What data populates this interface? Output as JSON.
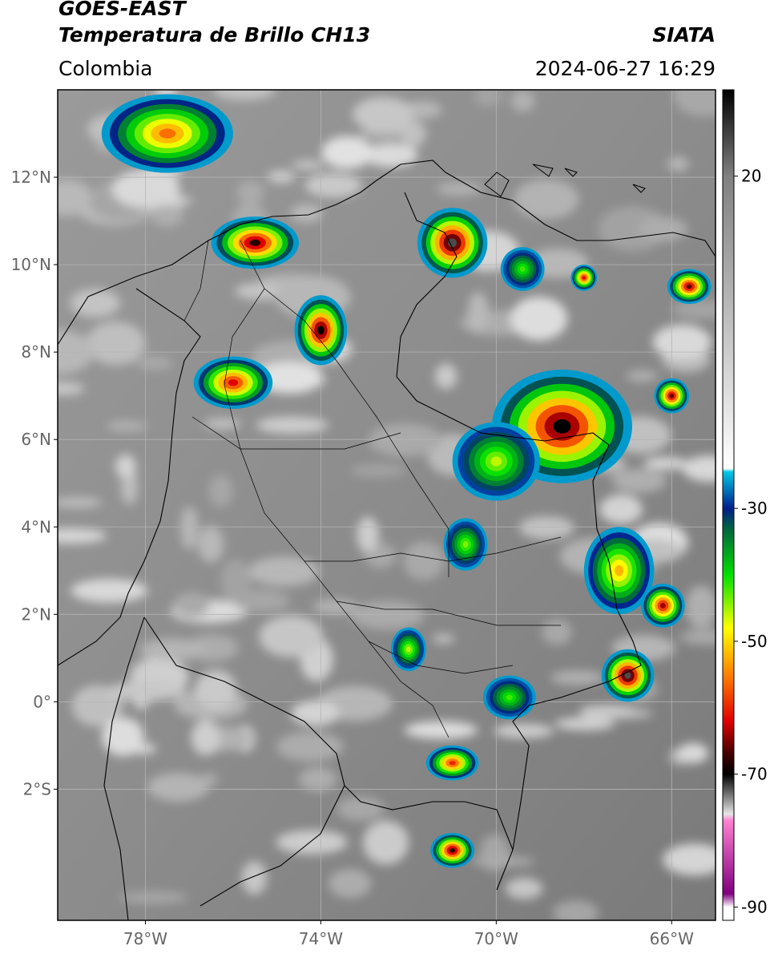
{
  "header": {
    "title_line1": "GOES-EAST",
    "title_line2": "Temperatura de Brillo CH13",
    "region": "Colombia",
    "agency": "SIATA",
    "datetime": "2024-06-27 16:29"
  },
  "map": {
    "lon_range": [
      -80,
      -65
    ],
    "lat_range": [
      -5,
      14
    ],
    "lat_ticks": [
      {
        "value": 12,
        "label": "12°N"
      },
      {
        "value": 10,
        "label": "10°N"
      },
      {
        "value": 8,
        "label": "8°N"
      },
      {
        "value": 6,
        "label": "6°N"
      },
      {
        "value": 4,
        "label": "4°N"
      },
      {
        "value": 2,
        "label": "2°N"
      },
      {
        "value": 0,
        "label": "0°"
      },
      {
        "value": -2,
        "label": "2°S"
      }
    ],
    "lon_ticks": [
      {
        "value": -78,
        "label": "78°W"
      },
      {
        "value": -74,
        "label": "74°W"
      },
      {
        "value": -70,
        "label": "70°W"
      },
      {
        "value": -66,
        "label": "66°W"
      }
    ],
    "gridlines": true
  },
  "colorbar": {
    "range": [
      -92,
      33
    ],
    "ticks": [
      {
        "value": 20,
        "label": "20"
      },
      {
        "value": -30,
        "label": "-30"
      },
      {
        "value": -50,
        "label": "-50"
      },
      {
        "value": -70,
        "label": "-70"
      },
      {
        "value": -90,
        "label": "-90"
      }
    ],
    "stops": [
      {
        "value": 33,
        "color": "#000000"
      },
      {
        "value": 20,
        "color": "#808080"
      },
      {
        "value": -24,
        "color": "#ffffff"
      },
      {
        "value": -24.5,
        "color": "#00c8e6"
      },
      {
        "value": -30,
        "color": "#001e8c"
      },
      {
        "value": -33,
        "color": "#006440"
      },
      {
        "value": -40,
        "color": "#00e000"
      },
      {
        "value": -48,
        "color": "#ffff00"
      },
      {
        "value": -55,
        "color": "#ff8000"
      },
      {
        "value": -62,
        "color": "#e00000"
      },
      {
        "value": -67,
        "color": "#400000"
      },
      {
        "value": -70,
        "color": "#000000"
      },
      {
        "value": -73,
        "color": "#707070"
      },
      {
        "value": -76,
        "color": "#e6e6e6"
      },
      {
        "value": -77,
        "color": "#ff80d0"
      },
      {
        "value": -88,
        "color": "#800080"
      },
      {
        "value": -90,
        "color": "#ffffff"
      },
      {
        "value": -92,
        "color": "#ffffff"
      }
    ]
  },
  "storm_cells": [
    {
      "lon": -75.5,
      "lat": 10.5,
      "rx": 1.0,
      "ry": 0.6,
      "peak": -68
    },
    {
      "lon": -74.0,
      "lat": 8.5,
      "rx": 0.6,
      "ry": 0.8,
      "peak": -70
    },
    {
      "lon": -76.0,
      "lat": 7.3,
      "rx": 0.9,
      "ry": 0.6,
      "peak": -62
    },
    {
      "lon": -71.0,
      "lat": 10.5,
      "rx": 0.8,
      "ry": 0.8,
      "peak": -72
    },
    {
      "lon": -68.5,
      "lat": 6.3,
      "rx": 1.6,
      "ry": 1.3,
      "peak": -70
    },
    {
      "lon": -67.2,
      "lat": 3.0,
      "rx": 0.8,
      "ry": 1.0,
      "peak": -52
    },
    {
      "lon": -66.2,
      "lat": 2.2,
      "rx": 0.5,
      "ry": 0.5,
      "peak": -64
    },
    {
      "lon": -67.0,
      "lat": 0.6,
      "rx": 0.6,
      "ry": 0.6,
      "peak": -72
    },
    {
      "lon": -71.0,
      "lat": -3.4,
      "rx": 0.5,
      "ry": 0.4,
      "peak": -68
    },
    {
      "lon": -71.0,
      "lat": -1.4,
      "rx": 0.6,
      "ry": 0.4,
      "peak": -60
    },
    {
      "lon": -70.0,
      "lat": 5.5,
      "rx": 1.0,
      "ry": 0.9,
      "peak": -46
    },
    {
      "lon": -77.5,
      "lat": 13.0,
      "rx": 1.5,
      "ry": 0.9,
      "peak": -56
    },
    {
      "lon": -66.0,
      "lat": 7.0,
      "rx": 0.4,
      "ry": 0.4,
      "peak": -66
    },
    {
      "lon": -65.6,
      "lat": 9.5,
      "rx": 0.5,
      "ry": 0.4,
      "peak": -66
    },
    {
      "lon": -68.0,
      "lat": 9.7,
      "rx": 0.3,
      "ry": 0.3,
      "peak": -62
    },
    {
      "lon": -69.4,
      "lat": 9.9,
      "rx": 0.5,
      "ry": 0.5,
      "peak": -42
    },
    {
      "lon": -70.7,
      "lat": 3.6,
      "rx": 0.5,
      "ry": 0.6,
      "peak": -44
    },
    {
      "lon": -72.0,
      "lat": 1.2,
      "rx": 0.4,
      "ry": 0.5,
      "peak": -46
    },
    {
      "lon": -69.7,
      "lat": 0.1,
      "rx": 0.6,
      "ry": 0.5,
      "peak": -42
    }
  ]
}
